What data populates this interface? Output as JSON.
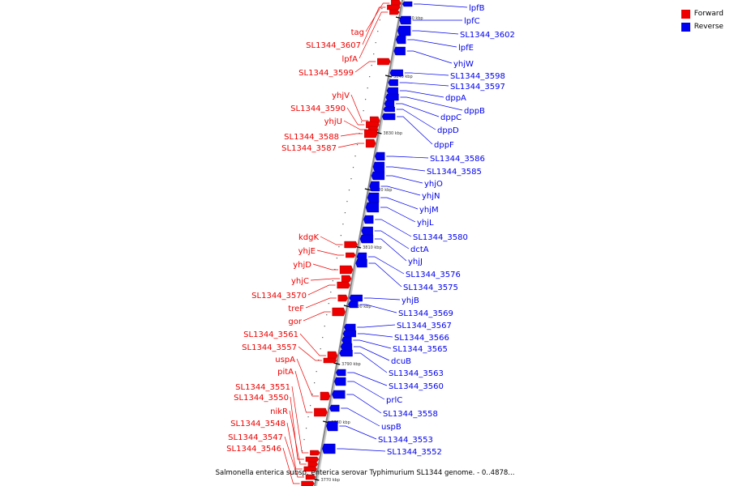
{
  "caption": "Salmonella enterica subsp. enterica serovar Typhimurium SL1344 genome. - 0..4878...",
  "legend": [
    {
      "label": "Forward",
      "color": "#ee0000"
    },
    {
      "label": "Reverse",
      "color": "#0000ee"
    }
  ],
  "colors": {
    "forward": "#ee0000",
    "reverse": "#0000ee",
    "backbone": "#888888"
  },
  "kbp_ticks": [
    "3850 kbp",
    "3840 kbp",
    "3830 kbp",
    "3820 kbp",
    "3810 kbp",
    "3800 kbp",
    "3790 kbp",
    "3780 kbp",
    "3770 kbp"
  ],
  "forward_genes": [
    "tag",
    "SL1344_3607",
    "lpfA",
    "SL1344_3599",
    "yhjV",
    "SL1344_3590",
    "yhjU",
    "SL1344_3588",
    "SL1344_3587",
    "kdgK",
    "yhjE",
    "yhjD",
    "yhjC",
    "SL1344_3570",
    "treF",
    "gor",
    "SL1344_3561",
    "SL1344_3557",
    "uspA",
    "pitA",
    "SL1344_3551",
    "SL1344_3550",
    "nikR",
    "SL1344_3548",
    "SL1344_3547",
    "SL1344_3546"
  ],
  "reverse_genes": [
    "lpfB",
    "lpfC",
    "SL1344_3602",
    "lpfE",
    "yhjW",
    "SL1344_3598",
    "SL1344_3597",
    "dppA",
    "dppB",
    "dppC",
    "dppD",
    "dppF",
    "SL1344_3586",
    "SL1344_3585",
    "yhjO",
    "yhjN",
    "yhjM",
    "yhjL",
    "SL1344_3580",
    "dctA",
    "yhjJ",
    "SL1344_3576",
    "SL1344_3575",
    "yhjB",
    "SL1344_3569",
    "SL1344_3567",
    "SL1344_3566",
    "SL1344_3565",
    "dcuB",
    "SL1344_3563",
    "SL1344_3560",
    "prlC",
    "SL1344_3558",
    "uspB",
    "SL1344_3553",
    "SL1344_3552"
  ]
}
